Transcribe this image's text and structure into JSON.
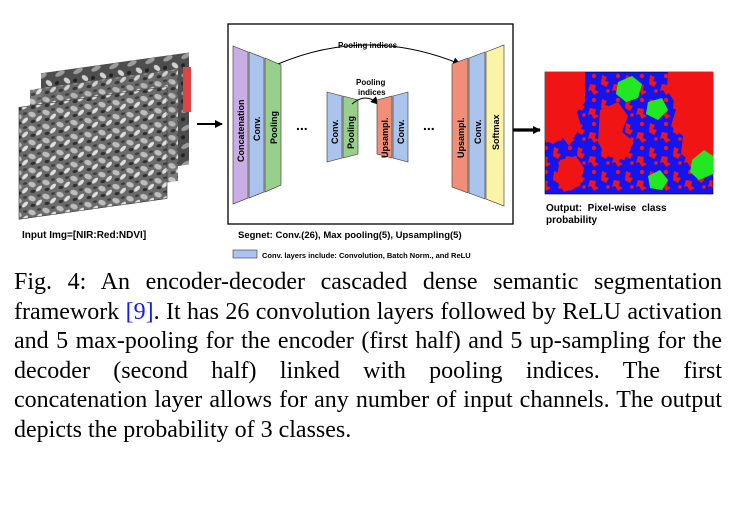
{
  "figure": {
    "input_label": "Input Img=[NIR:Red:NDVI]",
    "output_label_line1": "Output:  Pixel-wise  class",
    "output_label_line2": "probability",
    "segnet_label": "Segnet: Conv.(26), Max pooling(5), Upsampling(5)",
    "legend_text": "Conv. layers include: Convolution, Batch Norm., and ReLU",
    "pooling_indices_top": "Pooling indices",
    "pooling_indices_mid_line1": "Pooling",
    "pooling_indices_mid_line2": "indices",
    "ellipsis": "...",
    "layers": {
      "concatenation": "Concatenation",
      "conv": "Conv.",
      "pooling": "Pooling",
      "upsampling": "Upsampl.",
      "softmax": "Softmax"
    },
    "colors": {
      "concatenation": "#c9aee6",
      "conv": "#aac4ee",
      "pooling": "#98cf8a",
      "upsampling": "#f08e78",
      "softmax": "#fbf3a6",
      "output_blue": "#1414f0",
      "output_red": "#f01414",
      "output_green": "#22e822"
    }
  },
  "caption": {
    "fig_label": "Fig. 4:",
    "text_before_cite": "An encoder-decoder cascaded dense semantic segmentation framework ",
    "cite_open": "[",
    "cite_num": "9",
    "cite_close": "]",
    "text_after_cite": ". It has 26 convolution layers followed by ReLU activation and 5 max-pooling for the encoder (first half) and 5 up-sampling for the decoder (second half) linked with pooling indices. The first concatenation layer allows for any number of input channels. The output depicts the probability of 3 classes."
  }
}
